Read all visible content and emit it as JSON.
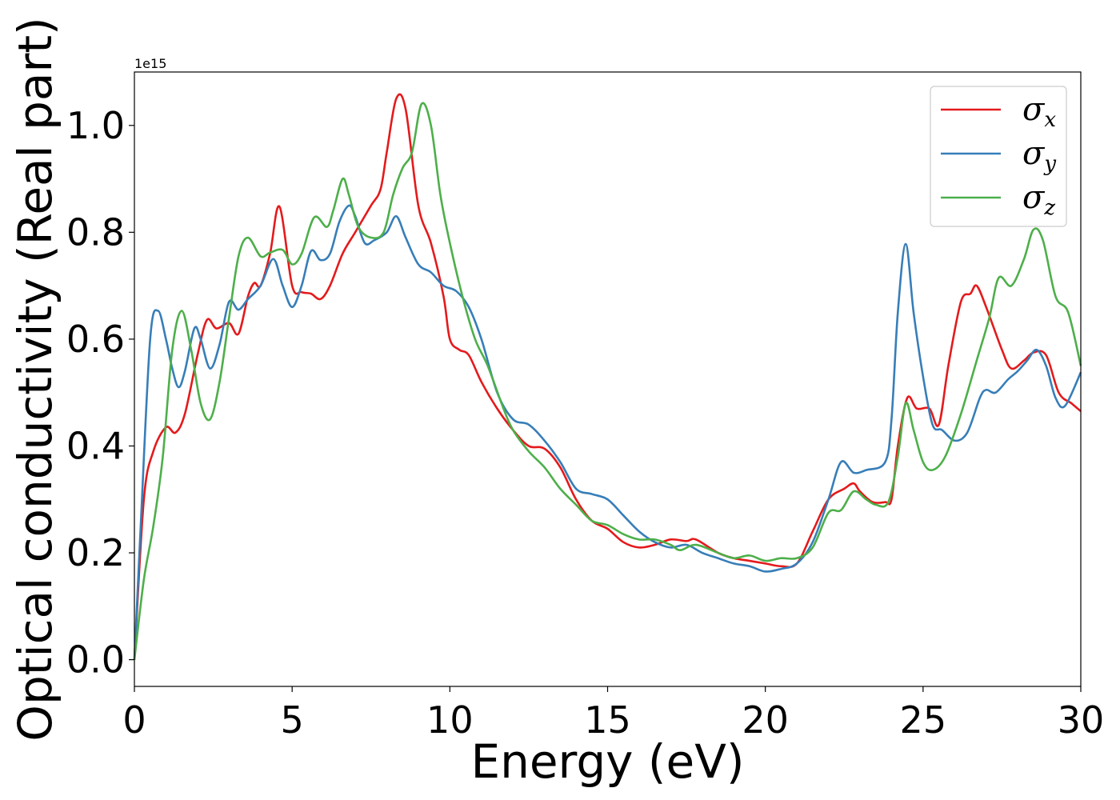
{
  "chart_data": {
    "type": "line",
    "xlabel": "Energy (eV)",
    "ylabel": "Optical conductivity (Real part)",
    "y_offset_label": "1e15",
    "xlim": [
      0,
      30
    ],
    "ylim": [
      -0.05,
      1.1
    ],
    "xticks": [
      0,
      5,
      10,
      15,
      20,
      25,
      30
    ],
    "xtick_labels": [
      "0",
      "5",
      "10",
      "15",
      "20",
      "25",
      "30"
    ],
    "yticks": [
      0.0,
      0.2,
      0.4,
      0.6,
      0.8,
      1.0
    ],
    "ytick_labels": [
      "0.0",
      "0.2",
      "0.4",
      "0.6",
      "0.8",
      "1.0"
    ],
    "grid": false,
    "legend_position": "top-right",
    "series": [
      {
        "name": "σx",
        "sym": "σ",
        "sub": "x",
        "color": "#e41a1c",
        "points": [
          [
            0,
            0
          ],
          [
            0.3,
            0.3
          ],
          [
            0.6,
            0.39
          ],
          [
            1,
            0.435
          ],
          [
            1.3,
            0.425
          ],
          [
            1.6,
            0.46
          ],
          [
            2,
            0.57
          ],
          [
            2.3,
            0.636
          ],
          [
            2.6,
            0.62
          ],
          [
            3,
            0.63
          ],
          [
            3.3,
            0.61
          ],
          [
            3.6,
            0.68
          ],
          [
            3.8,
            0.705
          ],
          [
            4,
            0.7
          ],
          [
            4.3,
            0.76
          ],
          [
            4.6,
            0.848
          ],
          [
            5,
            0.7
          ],
          [
            5.3,
            0.688
          ],
          [
            5.6,
            0.685
          ],
          [
            5.9,
            0.675
          ],
          [
            6.2,
            0.7
          ],
          [
            6.6,
            0.76
          ],
          [
            7,
            0.8
          ],
          [
            7.5,
            0.85
          ],
          [
            7.8,
            0.88
          ],
          [
            8,
            0.95
          ],
          [
            8.3,
            1.05
          ],
          [
            8.6,
            1.03
          ],
          [
            9,
            0.85
          ],
          [
            9.4,
            0.78
          ],
          [
            9.8,
            0.68
          ],
          [
            10,
            0.6
          ],
          [
            10.3,
            0.58
          ],
          [
            10.6,
            0.57
          ],
          [
            11,
            0.52
          ],
          [
            11.5,
            0.47
          ],
          [
            12,
            0.43
          ],
          [
            12.5,
            0.4
          ],
          [
            13,
            0.395
          ],
          [
            13.5,
            0.36
          ],
          [
            14,
            0.3
          ],
          [
            14.5,
            0.26
          ],
          [
            15,
            0.245
          ],
          [
            15.5,
            0.22
          ],
          [
            16,
            0.21
          ],
          [
            16.5,
            0.215
          ],
          [
            17,
            0.225
          ],
          [
            17.5,
            0.222
          ],
          [
            17.8,
            0.225
          ],
          [
            18.5,
            0.2
          ],
          [
            19,
            0.19
          ],
          [
            19.5,
            0.185
          ],
          [
            20,
            0.18
          ],
          [
            20.5,
            0.175
          ],
          [
            21,
            0.18
          ],
          [
            21.5,
            0.24
          ],
          [
            22,
            0.3
          ],
          [
            22.5,
            0.32
          ],
          [
            22.8,
            0.33
          ],
          [
            23,
            0.315
          ],
          [
            23.4,
            0.295
          ],
          [
            23.8,
            0.295
          ],
          [
            24,
            0.3
          ],
          [
            24.2,
            0.4
          ],
          [
            24.5,
            0.49
          ],
          [
            24.8,
            0.47
          ],
          [
            25.2,
            0.47
          ],
          [
            25.5,
            0.44
          ],
          [
            25.8,
            0.55
          ],
          [
            26.2,
            0.67
          ],
          [
            26.5,
            0.685
          ],
          [
            26.7,
            0.7
          ],
          [
            27,
            0.66
          ],
          [
            27.5,
            0.58
          ],
          [
            27.8,
            0.545
          ],
          [
            28.2,
            0.56
          ],
          [
            28.5,
            0.575
          ],
          [
            28.9,
            0.57
          ],
          [
            29.3,
            0.5
          ],
          [
            29.7,
            0.48
          ],
          [
            30,
            0.465
          ]
        ]
      },
      {
        "name": "σy",
        "sym": "σ",
        "sub": "y",
        "color": "#377eb8",
        "points": [
          [
            0,
            0
          ],
          [
            0.2,
            0.25
          ],
          [
            0.5,
            0.6
          ],
          [
            0.75,
            0.653
          ],
          [
            1,
            0.6
          ],
          [
            1.2,
            0.545
          ],
          [
            1.4,
            0.51
          ],
          [
            1.6,
            0.54
          ],
          [
            1.9,
            0.62
          ],
          [
            2.1,
            0.6
          ],
          [
            2.4,
            0.545
          ],
          [
            2.7,
            0.59
          ],
          [
            3,
            0.67
          ],
          [
            3.3,
            0.655
          ],
          [
            3.6,
            0.675
          ],
          [
            4,
            0.7
          ],
          [
            4.4,
            0.75
          ],
          [
            4.7,
            0.7
          ],
          [
            5,
            0.66
          ],
          [
            5.3,
            0.7
          ],
          [
            5.6,
            0.765
          ],
          [
            5.9,
            0.748
          ],
          [
            6.2,
            0.76
          ],
          [
            6.5,
            0.82
          ],
          [
            6.8,
            0.85
          ],
          [
            7,
            0.83
          ],
          [
            7.3,
            0.78
          ],
          [
            7.6,
            0.785
          ],
          [
            8,
            0.8
          ],
          [
            8.3,
            0.83
          ],
          [
            8.6,
            0.79
          ],
          [
            9,
            0.74
          ],
          [
            9.4,
            0.725
          ],
          [
            9.8,
            0.7
          ],
          [
            10.2,
            0.69
          ],
          [
            10.6,
            0.66
          ],
          [
            11,
            0.6
          ],
          [
            11.5,
            0.5
          ],
          [
            12,
            0.45
          ],
          [
            12.5,
            0.44
          ],
          [
            13,
            0.41
          ],
          [
            13.5,
            0.37
          ],
          [
            14,
            0.32
          ],
          [
            14.5,
            0.31
          ],
          [
            15,
            0.3
          ],
          [
            15.5,
            0.27
          ],
          [
            16,
            0.24
          ],
          [
            16.5,
            0.22
          ],
          [
            17,
            0.21
          ],
          [
            17.5,
            0.215
          ],
          [
            18,
            0.2
          ],
          [
            18.5,
            0.19
          ],
          [
            19,
            0.18
          ],
          [
            19.5,
            0.175
          ],
          [
            20,
            0.165
          ],
          [
            20.5,
            0.17
          ],
          [
            21,
            0.18
          ],
          [
            21.5,
            0.22
          ],
          [
            22,
            0.3
          ],
          [
            22.4,
            0.37
          ],
          [
            22.8,
            0.35
          ],
          [
            23.2,
            0.355
          ],
          [
            23.8,
            0.37
          ],
          [
            24,
            0.45
          ],
          [
            24.2,
            0.65
          ],
          [
            24.45,
            0.778
          ],
          [
            24.7,
            0.65
          ],
          [
            25,
            0.53
          ],
          [
            25.3,
            0.44
          ],
          [
            25.6,
            0.43
          ],
          [
            26,
            0.41
          ],
          [
            26.4,
            0.425
          ],
          [
            26.8,
            0.49
          ],
          [
            27,
            0.505
          ],
          [
            27.3,
            0.5
          ],
          [
            27.7,
            0.525
          ],
          [
            28,
            0.54
          ],
          [
            28.3,
            0.56
          ],
          [
            28.6,
            0.58
          ],
          [
            28.9,
            0.55
          ],
          [
            29.2,
            0.49
          ],
          [
            29.5,
            0.475
          ],
          [
            30,
            0.538
          ]
        ]
      },
      {
        "name": "σz",
        "sym": "σ",
        "sub": "z",
        "color": "#4daf4a",
        "points": [
          [
            0,
            0
          ],
          [
            0.3,
            0.15
          ],
          [
            0.6,
            0.25
          ],
          [
            0.9,
            0.38
          ],
          [
            1.2,
            0.58
          ],
          [
            1.5,
            0.653
          ],
          [
            1.8,
            0.58
          ],
          [
            2.1,
            0.48
          ],
          [
            2.4,
            0.45
          ],
          [
            2.7,
            0.52
          ],
          [
            3,
            0.64
          ],
          [
            3.3,
            0.755
          ],
          [
            3.6,
            0.79
          ],
          [
            4,
            0.755
          ],
          [
            4.3,
            0.762
          ],
          [
            4.7,
            0.767
          ],
          [
            5,
            0.74
          ],
          [
            5.3,
            0.76
          ],
          [
            5.7,
            0.828
          ],
          [
            6.1,
            0.81
          ],
          [
            6.3,
            0.84
          ],
          [
            6.6,
            0.9
          ],
          [
            6.8,
            0.87
          ],
          [
            7.1,
            0.81
          ],
          [
            7.5,
            0.79
          ],
          [
            7.9,
            0.8
          ],
          [
            8.2,
            0.87
          ],
          [
            8.5,
            0.92
          ],
          [
            8.8,
            0.95
          ],
          [
            9.1,
            1.04
          ],
          [
            9.4,
            1.0
          ],
          [
            9.7,
            0.87
          ],
          [
            10,
            0.78
          ],
          [
            10.4,
            0.68
          ],
          [
            10.8,
            0.6
          ],
          [
            11.2,
            0.55
          ],
          [
            11.7,
            0.47
          ],
          [
            12,
            0.43
          ],
          [
            12.5,
            0.39
          ],
          [
            13,
            0.36
          ],
          [
            13.5,
            0.32
          ],
          [
            14,
            0.29
          ],
          [
            14.5,
            0.26
          ],
          [
            15,
            0.252
          ],
          [
            15.5,
            0.235
          ],
          [
            16,
            0.225
          ],
          [
            16.5,
            0.225
          ],
          [
            17,
            0.215
          ],
          [
            17.3,
            0.205
          ],
          [
            17.8,
            0.215
          ],
          [
            18.5,
            0.2
          ],
          [
            19,
            0.19
          ],
          [
            19.5,
            0.195
          ],
          [
            20,
            0.185
          ],
          [
            20.5,
            0.19
          ],
          [
            21,
            0.19
          ],
          [
            21.5,
            0.21
          ],
          [
            22,
            0.275
          ],
          [
            22.4,
            0.28
          ],
          [
            22.8,
            0.315
          ],
          [
            23.2,
            0.3
          ],
          [
            23.5,
            0.29
          ],
          [
            23.9,
            0.295
          ],
          [
            24.2,
            0.38
          ],
          [
            24.45,
            0.48
          ],
          [
            24.7,
            0.43
          ],
          [
            25,
            0.37
          ],
          [
            25.3,
            0.355
          ],
          [
            25.7,
            0.38
          ],
          [
            26.2,
            0.46
          ],
          [
            26.7,
            0.56
          ],
          [
            27.1,
            0.64
          ],
          [
            27.4,
            0.715
          ],
          [
            27.8,
            0.7
          ],
          [
            28.2,
            0.75
          ],
          [
            28.5,
            0.805
          ],
          [
            28.8,
            0.785
          ],
          [
            29.2,
            0.68
          ],
          [
            29.6,
            0.65
          ],
          [
            30,
            0.55
          ]
        ]
      }
    ]
  }
}
